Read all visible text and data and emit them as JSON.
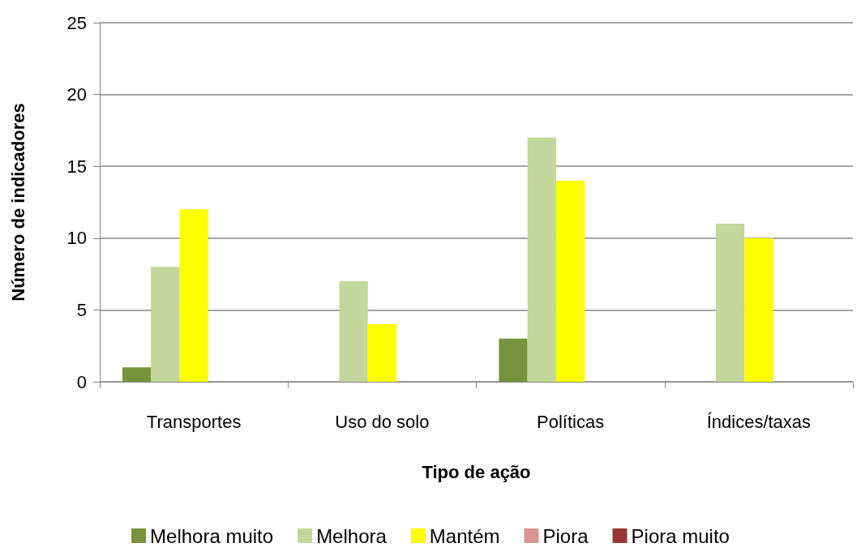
{
  "chart_data": {
    "type": "bar",
    "xlabel": "Tipo de ação",
    "ylabel": "Número de indicadores",
    "categories": [
      "Transportes",
      "Uso do solo",
      "Políticas",
      "Índices/taxas"
    ],
    "series": [
      {
        "name": "Melhora muito",
        "color": "#77933c",
        "values": [
          1,
          0,
          3,
          0
        ]
      },
      {
        "name": "Melhora",
        "color": "#c3d69b",
        "values": [
          8,
          7,
          17,
          11
        ]
      },
      {
        "name": "Mantém",
        "color": "#ffff00",
        "values": [
          12,
          4,
          14,
          10
        ]
      },
      {
        "name": "Piora",
        "color": "#d99694",
        "values": [
          0,
          0,
          0,
          0
        ]
      },
      {
        "name": "Piora muito",
        "color": "#953735",
        "values": [
          0,
          0,
          0,
          0
        ]
      }
    ],
    "ylim": [
      0,
      25
    ],
    "yticks": [
      0,
      5,
      10,
      15,
      20,
      25
    ],
    "grid": "y",
    "legend": "bottom"
  }
}
